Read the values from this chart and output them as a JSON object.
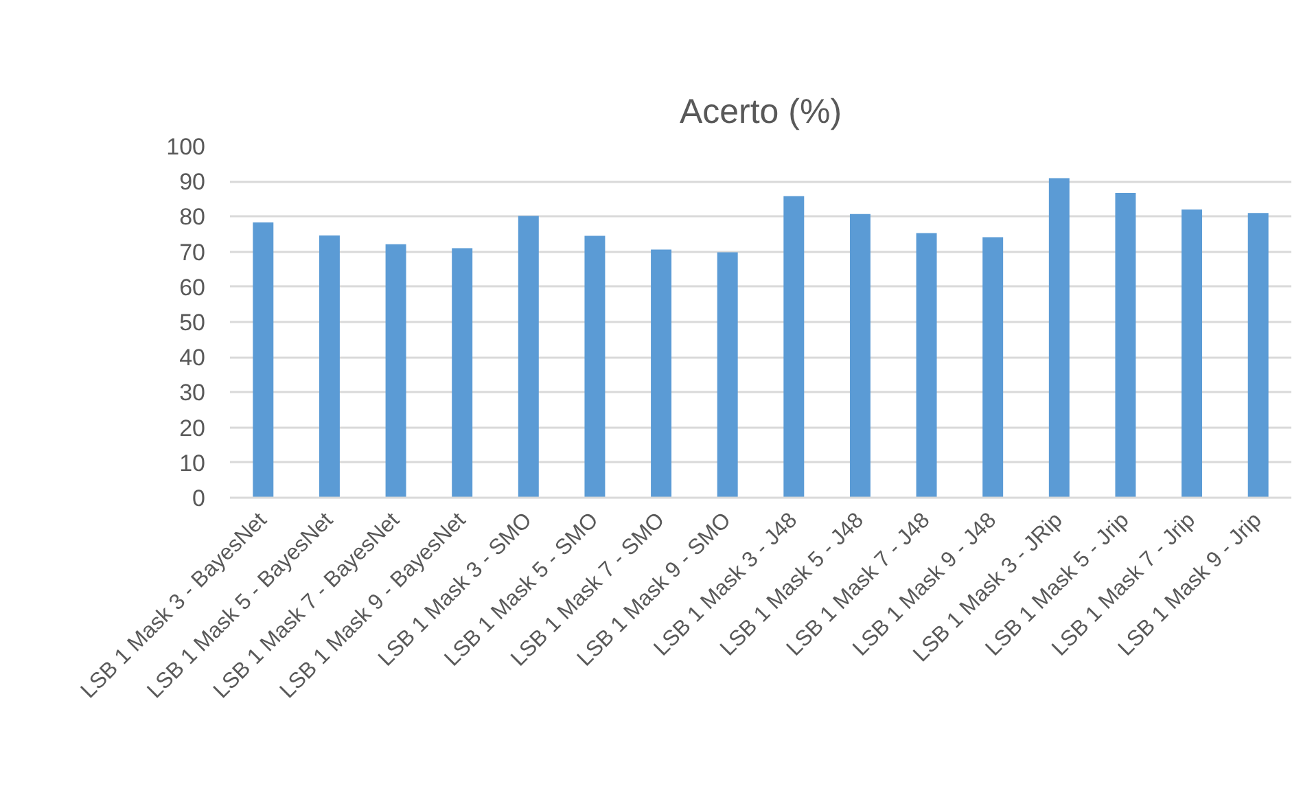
{
  "chart_data": {
    "type": "bar",
    "title": "Acerto (%)",
    "categories": [
      "LSB 1 Mask 3 - BayesNet",
      "LSB 1 Mask 5 - BayesNet",
      "LSB 1 Mask 7 - BayesNet",
      "LSB 1 Mask 9 - BayesNet",
      "LSB 1 Mask 3 - SMO",
      "LSB 1 Mask 5 - SMO",
      "LSB 1 Mask 7 - SMO",
      "LSB 1 Mask 9 - SMO",
      "LSB 1 Mask 3 - J48",
      "LSB 1 Mask 5 - J48",
      "LSB 1 Mask 7 - J48",
      "LSB 1 Mask 9 - J48",
      "LSB 1 Mask 3 - JRip",
      "LSB 1 Mask 5 - Jrip",
      "LSB 1 Mask 7 - Jrip",
      "LSB 1 Mask 9 - Jrip"
    ],
    "values": [
      78.3,
      74.6,
      72.1,
      71.0,
      80.2,
      74.5,
      70.6,
      69.8,
      85.8,
      80.7,
      75.3,
      74.1,
      90.9,
      86.7,
      82.0,
      81.0
    ],
    "color": "#5b9bd5",
    "ylim": [
      0,
      100
    ],
    "yticks": [
      0,
      10,
      20,
      30,
      40,
      50,
      60,
      70,
      80,
      90,
      100
    ],
    "grid": "y"
  }
}
